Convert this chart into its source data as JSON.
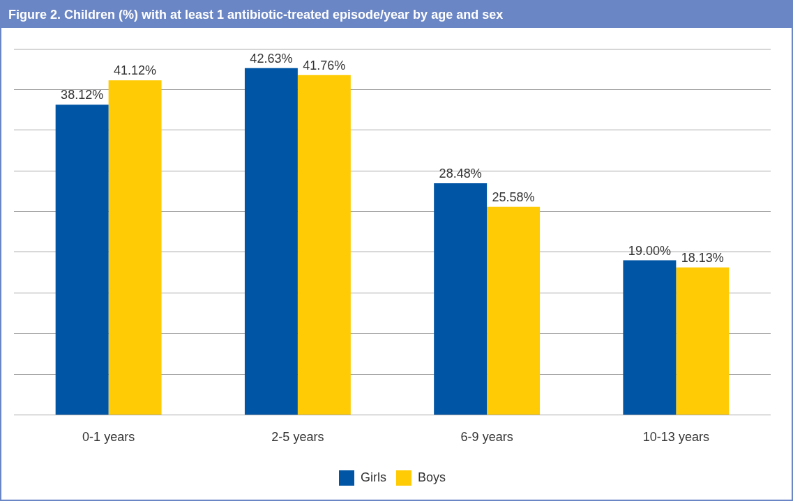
{
  "chart_data": {
    "type": "bar",
    "title": "Figure 2. Children (%) with at least 1 antibiotic-treated episode/year by age and sex",
    "categories": [
      "0-1 years",
      "2-5 years",
      "6-9 years",
      "10-13 years"
    ],
    "series": [
      {
        "name": "Girls",
        "color": "#0055a4",
        "values": [
          38.12,
          42.63,
          28.48,
          19.0
        ],
        "value_labels": [
          "38.12%",
          "42.63%",
          "28.48%",
          "19.00%"
        ]
      },
      {
        "name": "Boys",
        "color": "#ffcb05",
        "values": [
          41.12,
          41.76,
          25.58,
          18.13
        ],
        "value_labels": [
          "41.12%",
          "41.76%",
          "25.58%",
          "18.13%"
        ]
      }
    ],
    "ylim": [
      0,
      45
    ],
    "yticks": [
      {
        "value": 0,
        "label": null
      },
      {
        "value": 5,
        "label": null
      },
      {
        "value": 10,
        "label": null
      },
      {
        "value": 15,
        "label": null
      },
      {
        "value": 20,
        "label": null
      },
      {
        "value": 25,
        "label": null
      },
      {
        "value": 30,
        "label": null
      },
      {
        "value": 35,
        "label": null
      },
      {
        "value": 40,
        "label": null
      },
      {
        "value": 45,
        "label": null
      }
    ],
    "tick_labels": "x",
    "grid": "y",
    "legend": "bottom"
  }
}
